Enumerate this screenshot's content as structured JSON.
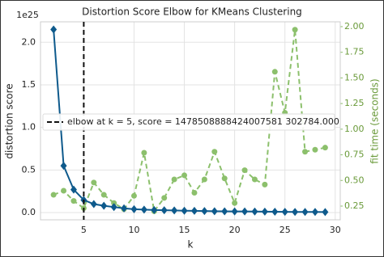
{
  "chart_data": {
    "type": "line",
    "title": "Distortion Score Elbow for KMeans Clustering",
    "x_label": "k",
    "y_label": "distortion score",
    "y2_label": "fit time (seconds)",
    "y_offset_label": "1e25",
    "x": [
      2,
      3,
      4,
      5,
      6,
      7,
      8,
      9,
      10,
      11,
      12,
      13,
      14,
      15,
      16,
      17,
      18,
      19,
      20,
      21,
      22,
      23,
      24,
      25,
      26,
      27,
      28,
      29
    ],
    "series": [
      {
        "name": "distortion score",
        "color": "#0e5a8c",
        "axis": "y",
        "values": [
          2.15,
          0.55,
          0.27,
          0.148,
          0.1,
          0.08,
          0.065,
          0.05,
          0.04,
          0.035,
          0.03,
          0.028,
          0.025,
          0.022,
          0.02,
          0.018,
          0.016,
          0.015,
          0.014,
          0.013,
          0.012,
          0.011,
          0.01,
          0.009,
          0.008,
          0.008,
          0.007,
          0.006
        ]
      },
      {
        "name": "fit time (seconds)",
        "color": "#8cc06c",
        "axis": "y2",
        "values": [
          0.36,
          0.4,
          0.3,
          0.23,
          0.48,
          0.36,
          0.28,
          0.22,
          0.35,
          0.77,
          0.2,
          0.33,
          0.51,
          0.55,
          0.38,
          0.51,
          0.78,
          0.52,
          0.28,
          0.6,
          0.51,
          0.46,
          1.56,
          1.16,
          1.97,
          0.78,
          0.8,
          0.82
        ]
      }
    ],
    "elbow_x": 5,
    "elbow_color": "#111111",
    "legend_label": "elbow at k = 5, score = 1478508888424007581 302784.000",
    "xlim": [
      0.7,
      30.5
    ],
    "xticks": [
      5,
      10,
      15,
      20,
      25,
      30
    ],
    "ylim": [
      -0.085,
      2.24
    ],
    "yticks": [
      {
        "value": 0,
        "label": "0.0"
      },
      {
        "value": 0.5,
        "label": "0.5"
      },
      {
        "value": 1,
        "label": "1.0"
      },
      {
        "value": 1.5,
        "label": "1.5"
      },
      {
        "value": 2,
        "label": "2.0"
      }
    ],
    "y2lim": [
      0.116,
      2.047
    ],
    "y2ticks": [
      {
        "value": 0.25,
        "label": "0.25"
      },
      {
        "value": 0.5,
        "label": "0.50"
      },
      {
        "value": 0.75,
        "label": "0.75"
      },
      {
        "value": 1,
        "label": "1.00"
      },
      {
        "value": 1.25,
        "label": "1.25"
      },
      {
        "value": 1.5,
        "label": "1.50"
      },
      {
        "value": 1.75,
        "label": "1.75"
      },
      {
        "value": 2,
        "label": "2.00"
      }
    ],
    "grid": true
  }
}
